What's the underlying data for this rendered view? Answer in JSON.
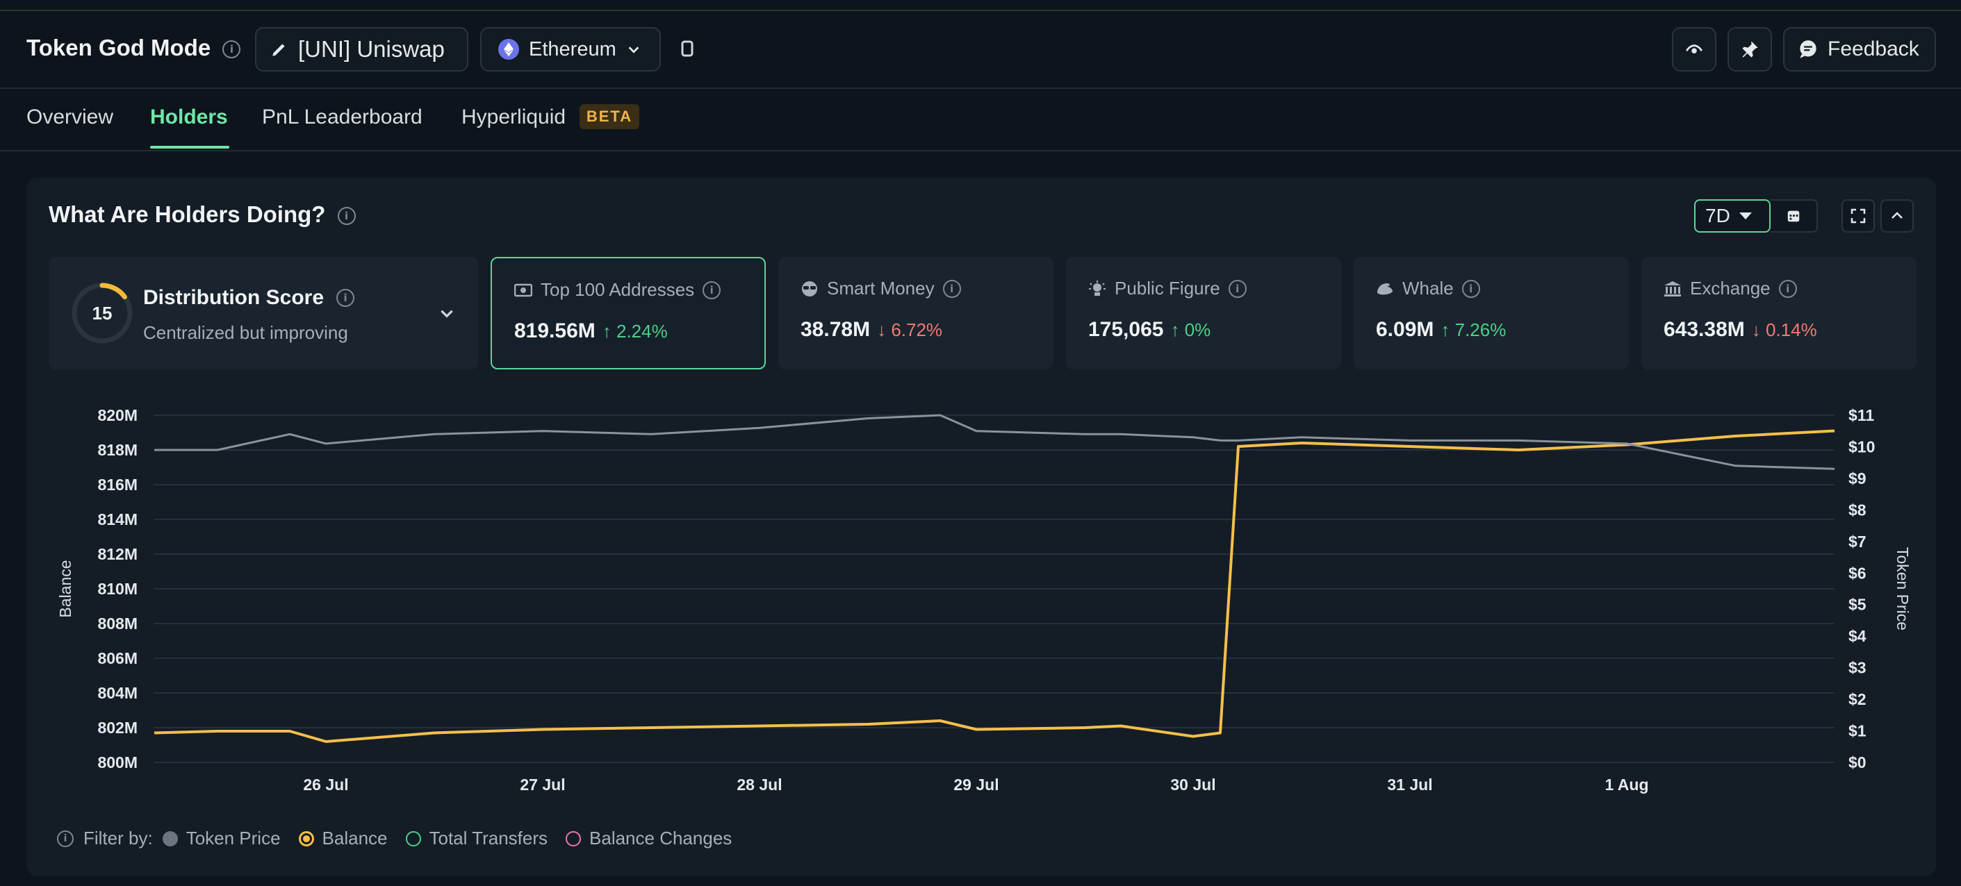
{
  "header": {
    "title": "Token God Mode",
    "token_selector": "[UNI] Uniswap",
    "chain_selector": "Ethereum",
    "feedback_label": "Feedback"
  },
  "tabs": [
    {
      "label": "Overview",
      "active": false
    },
    {
      "label": "Holders",
      "active": true
    },
    {
      "label": "PnL Leaderboard",
      "active": false
    },
    {
      "label": "Hyperliquid",
      "active": false,
      "badge": "BETA"
    }
  ],
  "panel": {
    "title": "What Are Holders Doing?",
    "period": "7D"
  },
  "distribution": {
    "score": "15",
    "title": "Distribution Score",
    "subtitle": "Centralized but improving",
    "score_fraction": 0.15
  },
  "cards": [
    {
      "label": "Top 100 Addresses",
      "value": "819.56M",
      "change": "2.24%",
      "direction": "up",
      "icon": "money-icon",
      "selected": true
    },
    {
      "label": "Smart Money",
      "value": "38.78M",
      "change": "6.72%",
      "direction": "down",
      "icon": "sunglasses-icon",
      "selected": false
    },
    {
      "label": "Public Figure",
      "value": "175,065",
      "change": "0%",
      "direction": "up",
      "icon": "spotlight-icon",
      "selected": false
    },
    {
      "label": "Whale",
      "value": "6.09M",
      "change": "7.26%",
      "direction": "up",
      "icon": "whale-icon",
      "selected": false
    },
    {
      "label": "Exchange",
      "value": "643.38M",
      "change": "0.14%",
      "direction": "down",
      "icon": "bank-icon",
      "selected": false
    }
  ],
  "legend": {
    "filter_label": "Filter by:",
    "items": [
      {
        "label": "Token Price",
        "color": "#6b7580",
        "style": "filled"
      },
      {
        "label": "Balance",
        "color": "#f5c04a",
        "style": "ring-filled"
      },
      {
        "label": "Total Transfers",
        "color": "#4fcf8a",
        "style": "ring"
      },
      {
        "label": "Balance Changes",
        "color": "#e879a9",
        "style": "ring"
      }
    ]
  },
  "colors": {
    "accent": "#6ee7a8",
    "balance": "#f5c04a",
    "price": "#8a939c",
    "up": "#4fcf8a",
    "down": "#f07a73"
  },
  "chart_data": {
    "type": "line",
    "xlabel": "",
    "ylabel": "Balance",
    "y2label": "Token Price",
    "ylim": [
      800,
      820
    ],
    "y2lim": [
      0,
      11
    ],
    "y_ticks": [
      "820M",
      "818M",
      "816M",
      "814M",
      "812M",
      "810M",
      "808M",
      "806M",
      "804M",
      "802M",
      "800M"
    ],
    "y2_ticks": [
      "$11",
      "$10",
      "$9",
      "$8",
      "$7",
      "$6",
      "$5",
      "$4",
      "$3",
      "$2",
      "$1",
      "$0"
    ],
    "x_ticks": [
      "26 Jul",
      "27 Jul",
      "28 Jul",
      "29 Jul",
      "30 Jul",
      "31 Jul",
      "1 Aug"
    ],
    "series": [
      {
        "name": "Balance",
        "unit": "M",
        "x": [
          "2025-07-25T05:00",
          "2025-07-25T12:00",
          "2025-07-25T20:00",
          "2025-07-26T00:00",
          "2025-07-26T12:00",
          "2025-07-27T00:00",
          "2025-07-27T12:00",
          "2025-07-28T00:00",
          "2025-07-28T12:00",
          "2025-07-28T20:00",
          "2025-07-29T00:00",
          "2025-07-29T12:00",
          "2025-07-29T16:00",
          "2025-07-30T00:00",
          "2025-07-30T03:00",
          "2025-07-30T05:00",
          "2025-07-30T12:00",
          "2025-07-31T00:00",
          "2025-07-31T12:00",
          "2025-08-01T00:00",
          "2025-08-01T12:00",
          "2025-08-01T23:00"
        ],
        "values": [
          801.7,
          801.8,
          801.8,
          801.2,
          801.7,
          801.9,
          802.0,
          802.1,
          802.2,
          802.4,
          801.9,
          802.0,
          802.1,
          801.5,
          801.7,
          818.2,
          818.4,
          818.2,
          818.0,
          818.3,
          818.8,
          819.1
        ]
      },
      {
        "name": "Token Price",
        "unit": "$",
        "x": [
          "2025-07-25T05:00",
          "2025-07-25T12:00",
          "2025-07-25T20:00",
          "2025-07-26T00:00",
          "2025-07-26T12:00",
          "2025-07-27T00:00",
          "2025-07-27T12:00",
          "2025-07-28T00:00",
          "2025-07-28T12:00",
          "2025-07-28T20:00",
          "2025-07-29T00:00",
          "2025-07-29T12:00",
          "2025-07-29T16:00",
          "2025-07-30T00:00",
          "2025-07-30T03:00",
          "2025-07-30T05:00",
          "2025-07-30T12:00",
          "2025-07-31T00:00",
          "2025-07-31T12:00",
          "2025-08-01T00:00",
          "2025-08-01T12:00",
          "2025-08-01T23:00"
        ],
        "values": [
          9.9,
          9.9,
          10.4,
          10.1,
          10.4,
          10.5,
          10.4,
          10.6,
          10.9,
          11.0,
          10.5,
          10.4,
          10.4,
          10.3,
          10.2,
          10.2,
          10.3,
          10.2,
          10.2,
          10.1,
          9.4,
          9.3
        ]
      }
    ]
  }
}
